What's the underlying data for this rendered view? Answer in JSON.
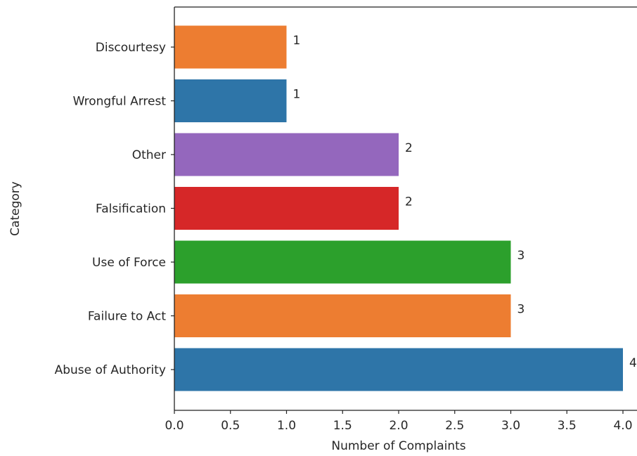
{
  "chart_data": {
    "type": "bar",
    "orientation": "horizontal",
    "title": "",
    "xlabel": "Number of Complaints",
    "ylabel": "Category",
    "categories": [
      "Abuse of Authority",
      "Failure to Act",
      "Use of Force",
      "Falsification",
      "Other",
      "Wrongful Arrest",
      "Discourtesy"
    ],
    "values": [
      4,
      3,
      3,
      2,
      2,
      1,
      1
    ],
    "data_labels": [
      "4",
      "3",
      "3",
      "2",
      "2",
      "1",
      "1"
    ],
    "bar_colors": [
      "#2e75a8",
      "#ed7d31",
      "#2ca02c",
      "#d62728",
      "#9467bd",
      "#2e75a8",
      "#ed7d31"
    ],
    "xlim": [
      0,
      4.0
    ],
    "xticks": [
      "0.0",
      "0.5",
      "1.0",
      "1.5",
      "2.0",
      "2.5",
      "3.0",
      "3.5",
      "4.0"
    ],
    "grid": false,
    "legend": "none"
  }
}
